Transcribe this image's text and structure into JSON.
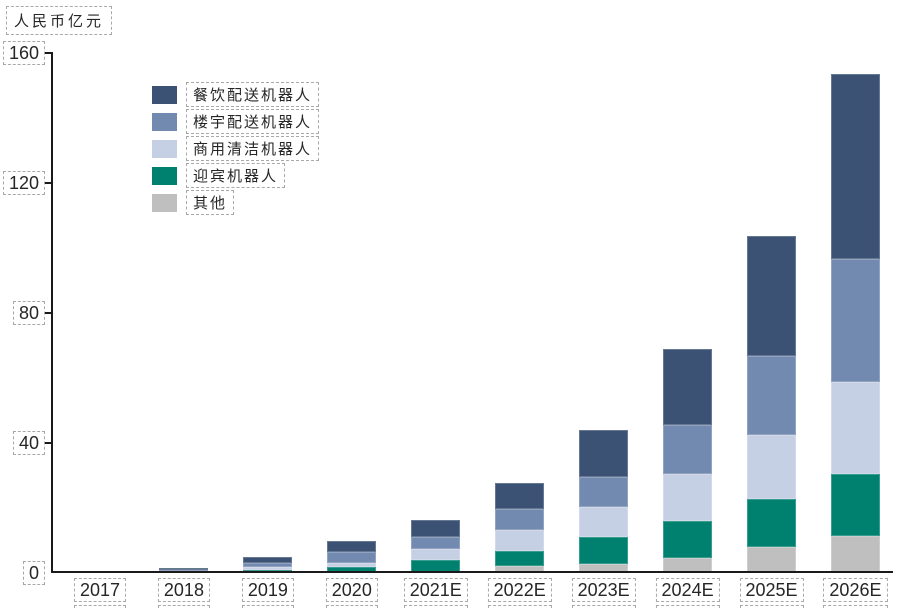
{
  "unit_label": "人民币亿元",
  "chart_data": {
    "type": "bar",
    "stacked": true,
    "title": "",
    "ylabel": "人民币亿元",
    "yticks": [
      0,
      40,
      80,
      120,
      160
    ],
    "ylim": [
      0,
      160
    ],
    "grid": false,
    "legend_position": "upper-left-inside",
    "categories": [
      "2017",
      "2018",
      "2019",
      "2020",
      "2021E",
      "2022E",
      "2023E",
      "2024E",
      "2025E",
      "2026E"
    ],
    "series": [
      {
        "name": "其他",
        "color": "#BFBFBF",
        "stack_order": "bottom",
        "values": [
          0,
          0,
          0.1,
          0,
          0,
          1.7,
          2.4,
          4.4,
          7.6,
          11.0
        ]
      },
      {
        "name": "迎宾机器人",
        "color": "#008170",
        "stack_order": "2",
        "values": [
          0,
          0.1,
          0.6,
          1.4,
          3.8,
          4.8,
          8.4,
          11.3,
          15.0,
          19.0
        ]
      },
      {
        "name": "商用清洁机器人",
        "color": "#C6D0E4",
        "stack_order": "3",
        "values": [
          0,
          0.2,
          0.8,
          1.5,
          3.4,
          6.3,
          9.2,
          14.3,
          19.7,
          28.5
        ]
      },
      {
        "name": "楼宇配送机器人",
        "color": "#7289B0",
        "stack_order": "4",
        "values": [
          0.1,
          0.4,
          1.2,
          3.1,
          3.6,
          6.7,
          9.2,
          15.2,
          24.1,
          37.9
        ]
      },
      {
        "name": "餐饮配送机器人",
        "color": "#3B5274",
        "stack_order": "top",
        "values": [
          0.3,
          0.6,
          1.8,
          3.6,
          5.2,
          8.0,
          14.6,
          23.4,
          37.1,
          56.9
        ]
      }
    ],
    "totals": [
      0.4,
      1.3,
      4.5,
      9.6,
      16.0,
      27.5,
      43.8,
      68.6,
      103.5,
      153.3
    ]
  },
  "legend": {
    "items": [
      {
        "label": "餐饮配送机器人",
        "color": "#3B5274"
      },
      {
        "label": "楼宇配送机器人",
        "color": "#7289B0"
      },
      {
        "label": "商用清洁机器人",
        "color": "#C6D0E4"
      },
      {
        "label": "迎宾机器人",
        "color": "#008170"
      },
      {
        "label": "其他",
        "color": "#BFBFBF"
      }
    ]
  }
}
